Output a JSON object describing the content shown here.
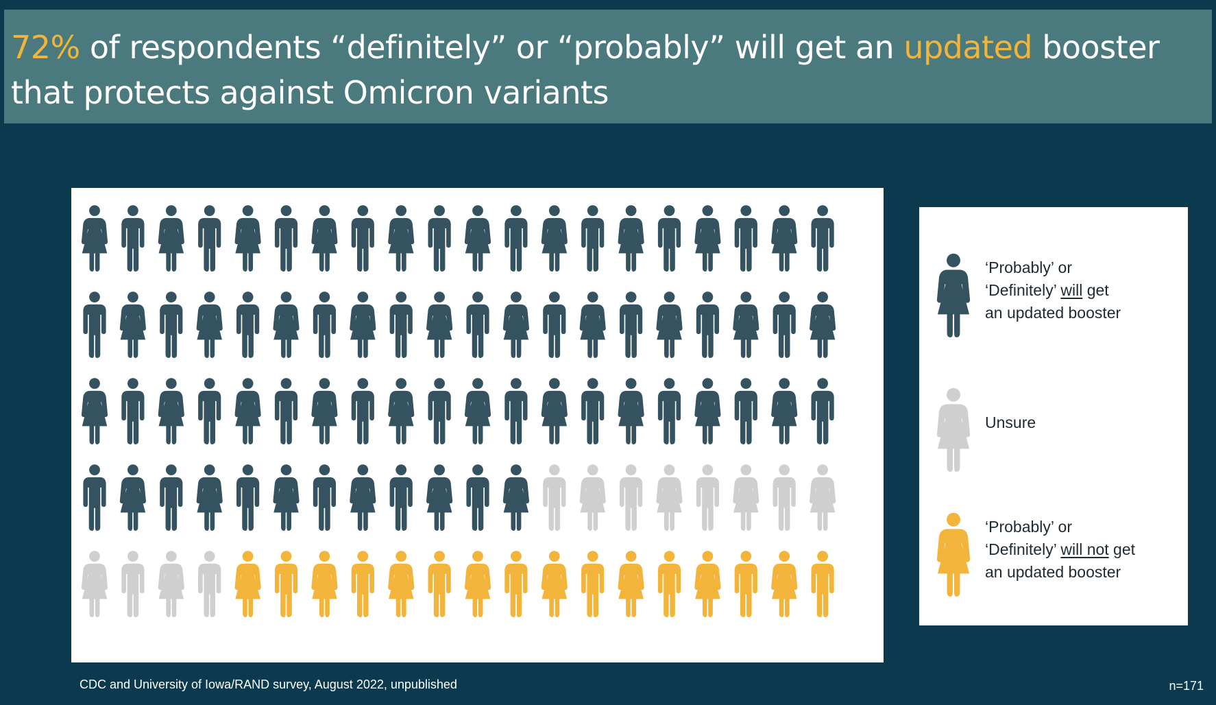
{
  "title": {
    "pct": "72%",
    "part1": " of respondents “definitely” or “probably” will get an ",
    "highlight": "updated",
    "part2": " booster that protects against Omicron variants"
  },
  "legend": {
    "will_get": {
      "l1": "‘Probably’ or",
      "l2a": "‘Definitely’ ",
      "l2u": "will",
      "l2b": " get",
      "l3": "an updated booster"
    },
    "unsure": {
      "l1": "Unsure"
    },
    "will_not": {
      "l1": "‘Probably’ or",
      "l2a": "‘Definitely’ ",
      "l2u": "will not",
      "l2b": " get",
      "l3": "an updated booster"
    }
  },
  "source": "CDC and University of Iowa/RAND survey, August 2022, unpublished",
  "sample_size": "n=171",
  "colors": {
    "will_get": "#34525f",
    "unsure": "#cfcfcf",
    "will_not": "#f2b43a",
    "background": "#0b3a4e",
    "title_bar": "#4a7a7d",
    "highlight": "#f2b43a"
  },
  "icons": {
    "figure_a": "person-icon",
    "figure_b": "person-dress-icon"
  },
  "chart_data": {
    "type": "pictogram",
    "rows": 5,
    "columns": 20,
    "categories": [
      "will_get",
      "unsure",
      "will_not"
    ],
    "counts": [
      72,
      12,
      16
    ],
    "row_patterns": [
      [
        "F",
        "M",
        "F",
        "M",
        "F",
        "M",
        "F",
        "M",
        "F",
        "M",
        "F",
        "M",
        "F",
        "M",
        "F",
        "M",
        "F",
        "M",
        "F",
        "M"
      ],
      [
        "M",
        "F",
        "M",
        "F",
        "M",
        "F",
        "M",
        "F",
        "M",
        "F",
        "M",
        "F",
        "M",
        "F",
        "M",
        "F",
        "M",
        "F",
        "M",
        "F"
      ],
      [
        "F",
        "M",
        "F",
        "M",
        "F",
        "M",
        "F",
        "M",
        "F",
        "M",
        "F",
        "M",
        "F",
        "M",
        "F",
        "M",
        "F",
        "M",
        "F",
        "M"
      ],
      [
        "M",
        "F",
        "M",
        "F",
        "M",
        "F",
        "M",
        "F",
        "M",
        "F",
        "M",
        "F",
        "M",
        "F",
        "M",
        "F",
        "M",
        "F",
        "M",
        "F"
      ],
      [
        "F",
        "M",
        "F",
        "M",
        "F",
        "M",
        "F",
        "M",
        "F",
        "M",
        "F",
        "M",
        "F",
        "M",
        "F",
        "M",
        "F",
        "M",
        "F",
        "M"
      ]
    ]
  }
}
